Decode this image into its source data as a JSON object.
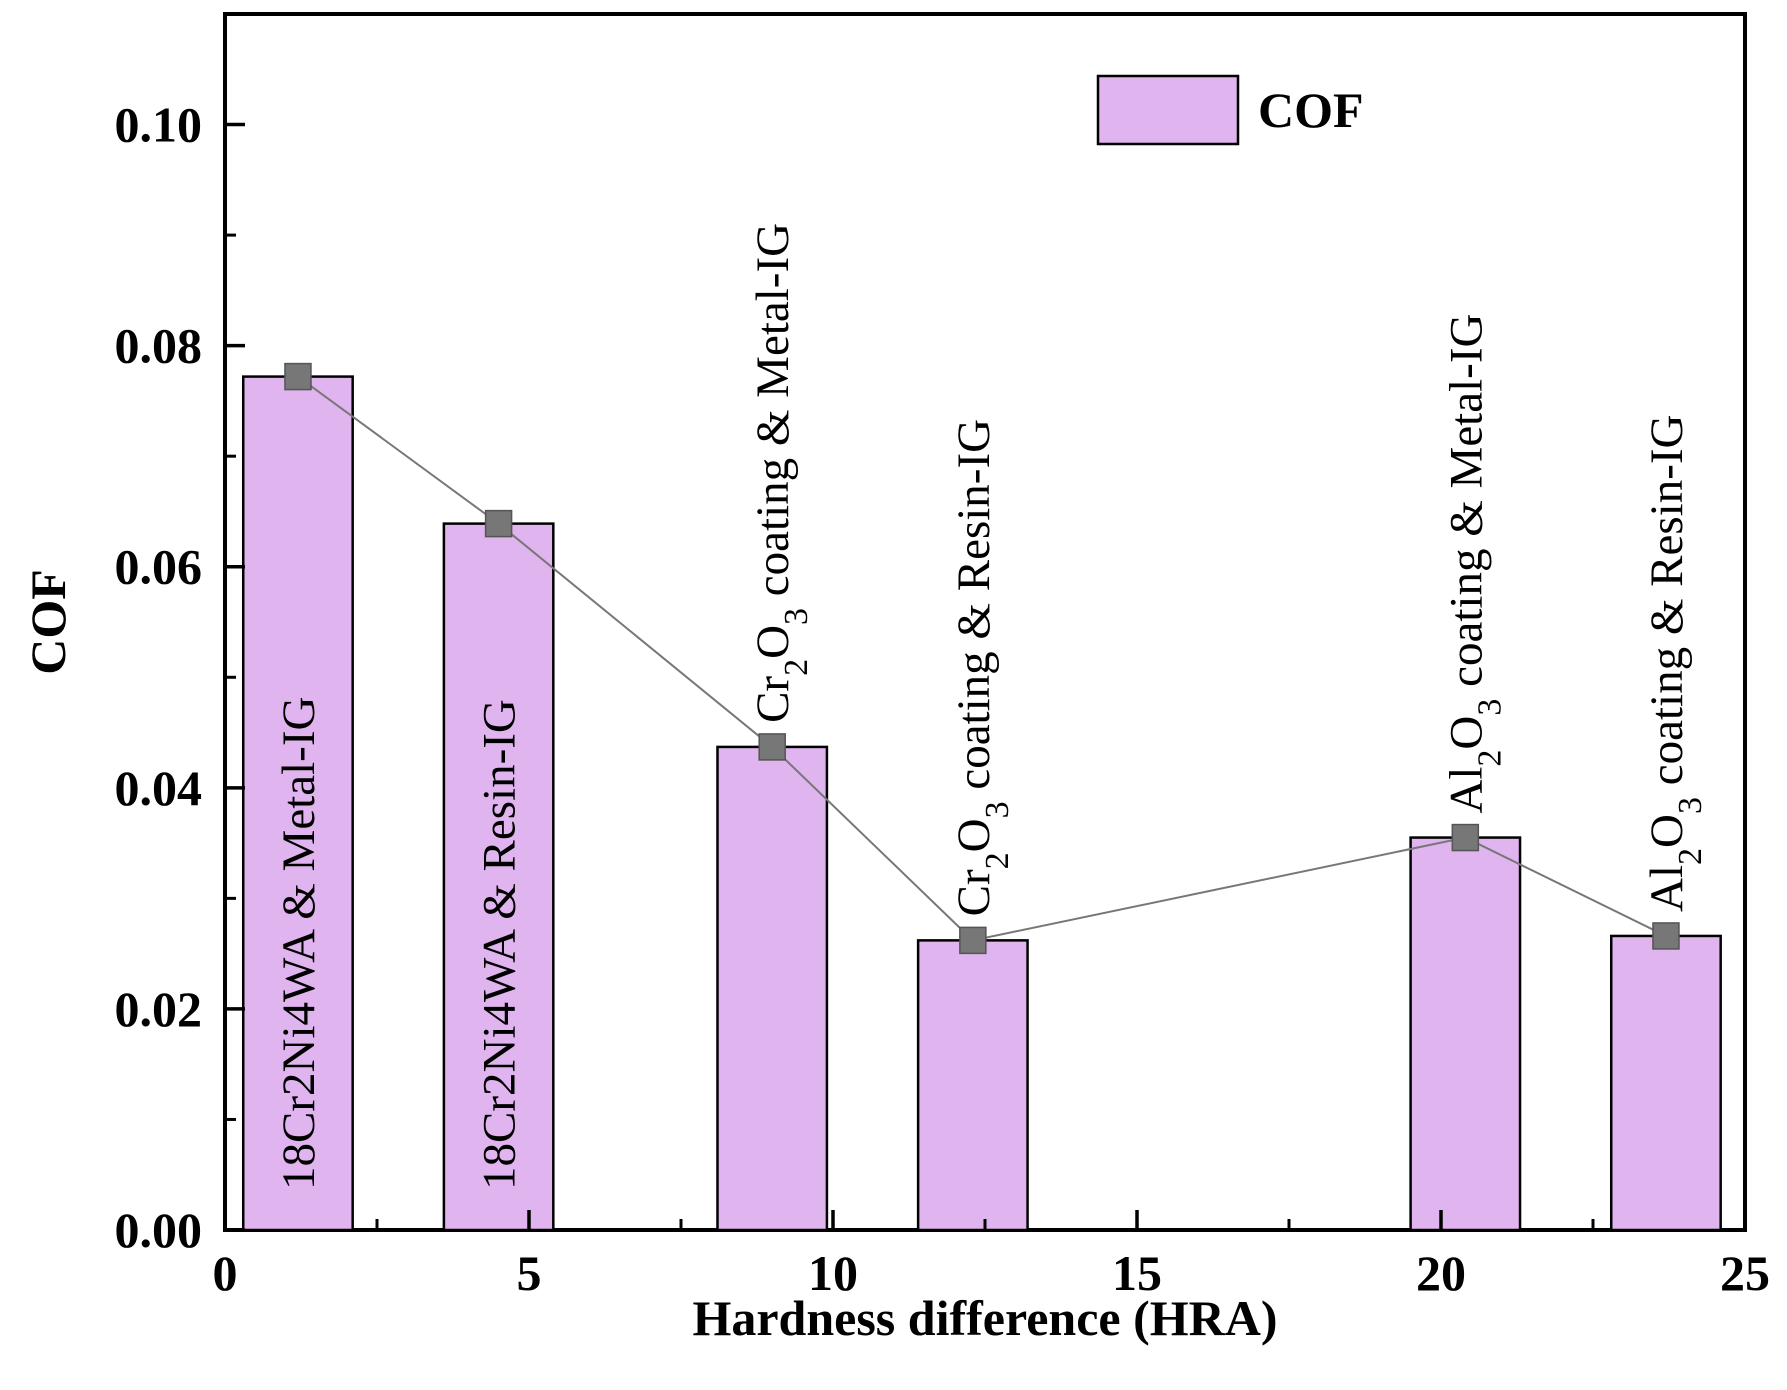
{
  "chart_data": {
    "type": "bar",
    "title": "",
    "xlabel": "Hardness difference (HRA)",
    "ylabel": "COF",
    "xlim": [
      0,
      25
    ],
    "ylim": [
      0,
      0.11
    ],
    "xticks": [
      0,
      5,
      10,
      15,
      20,
      25
    ],
    "xtick_labels": [
      "0",
      "5",
      "10",
      "15",
      "20",
      "25"
    ],
    "yticks": [
      0,
      0.02,
      0.04,
      0.06,
      0.08,
      0.1
    ],
    "ytick_labels": [
      "0.00",
      "0.02",
      "0.04",
      "0.06",
      "0.08",
      "0.10"
    ],
    "bar_width": 1.8,
    "legend": {
      "label": "COF",
      "position": "top-right"
    },
    "colors": {
      "bar_fill": "#e0b4ee",
      "bar_stroke": "#000000",
      "marker": "#777777",
      "line": "#777777"
    },
    "series": [
      {
        "name": "COF",
        "points": [
          {
            "x": 1.2,
            "y": 0.0772,
            "label": [
              {
                "t": "18Cr2Ni4WA & Metal-IG"
              }
            ]
          },
          {
            "x": 4.5,
            "y": 0.0639,
            "label": [
              {
                "t": "18Cr2Ni4WA & Resin-IG"
              }
            ]
          },
          {
            "x": 9.0,
            "y": 0.0437,
            "label": [
              {
                "t": "Cr"
              },
              {
                "t": "2",
                "sub": true
              },
              {
                "t": "O"
              },
              {
                "t": "3",
                "sub": true
              },
              {
                "t": " coating & Metal-IG"
              }
            ]
          },
          {
            "x": 12.3,
            "y": 0.0262,
            "label": [
              {
                "t": "Cr"
              },
              {
                "t": "2",
                "sub": true
              },
              {
                "t": "O"
              },
              {
                "t": "3",
                "sub": true
              },
              {
                "t": " coating & Resin-IG"
              }
            ]
          },
          {
            "x": 20.4,
            "y": 0.0355,
            "label": [
              {
                "t": "Al"
              },
              {
                "t": "2",
                "sub": true
              },
              {
                "t": "O"
              },
              {
                "t": "3",
                "sub": true
              },
              {
                "t": " coating & Metal-IG"
              }
            ]
          },
          {
            "x": 23.7,
            "y": 0.0266,
            "label": [
              {
                "t": "Al"
              },
              {
                "t": "2",
                "sub": true
              },
              {
                "t": "O"
              },
              {
                "t": "3",
                "sub": true
              },
              {
                "t": " coating & Resin-IG"
              }
            ]
          }
        ]
      }
    ]
  }
}
